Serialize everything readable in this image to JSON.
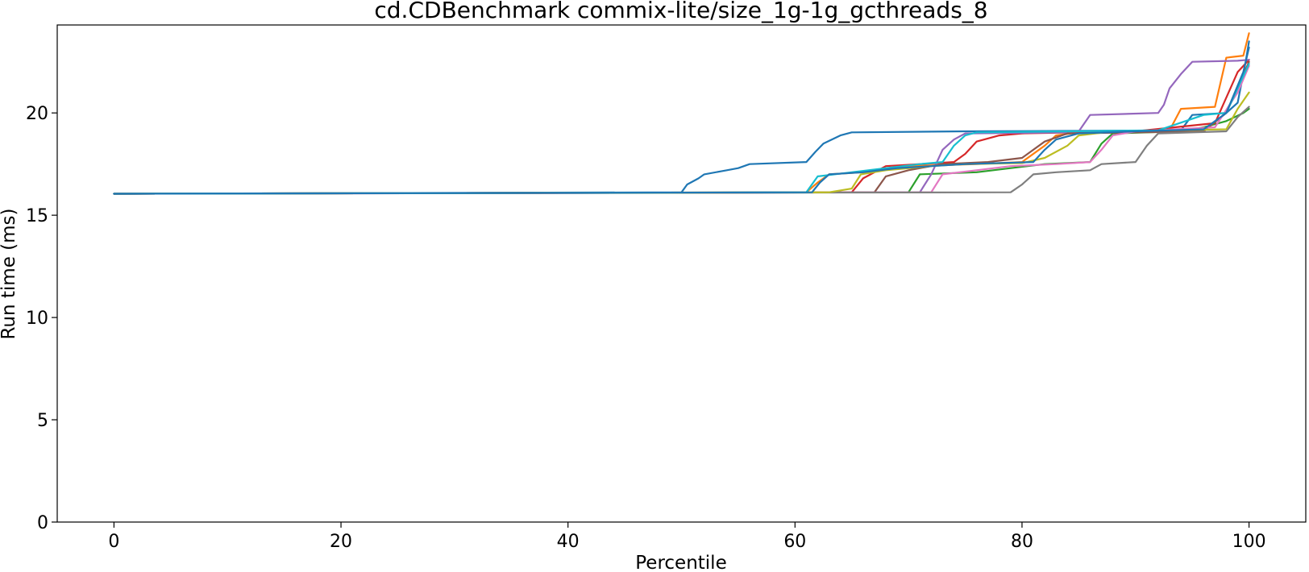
{
  "chart_data": {
    "type": "line",
    "title": "cd.CDBenchmark commix-lite/size_1g-1g_gcthreads_8",
    "xlabel": "Percentile",
    "ylabel": "Run time (ms)",
    "xlim": [
      -5,
      105
    ],
    "ylim": [
      0,
      24.3
    ],
    "xticks": [
      0,
      20,
      40,
      60,
      80,
      100
    ],
    "yticks": [
      0,
      5,
      10,
      15,
      20
    ],
    "xtick_labels": [
      "0",
      "20",
      "40",
      "60",
      "80",
      "100"
    ],
    "ytick_labels": [
      "0",
      "5",
      "10",
      "15",
      "20"
    ],
    "grid": false,
    "legend": "none",
    "series": [
      {
        "color": "#1f77b4",
        "points": [
          [
            0,
            16.05
          ],
          [
            50,
            16.12
          ],
          [
            50.5,
            16.5
          ],
          [
            51.5,
            16.8
          ],
          [
            52,
            17.0
          ],
          [
            54,
            17.2
          ],
          [
            55,
            17.3
          ],
          [
            56,
            17.5
          ],
          [
            61,
            17.6
          ],
          [
            61.8,
            18.1
          ],
          [
            62.5,
            18.5
          ],
          [
            64,
            18.9
          ],
          [
            65,
            19.05
          ],
          [
            75,
            19.1
          ],
          [
            94,
            19.15
          ],
          [
            95,
            19.9
          ],
          [
            98,
            20.0
          ],
          [
            99,
            20.5
          ],
          [
            99.7,
            22.5
          ],
          [
            100,
            23.5
          ]
        ]
      },
      {
        "color": "#ff7f0e",
        "points": [
          [
            0,
            16.05
          ],
          [
            61,
            16.12
          ],
          [
            62,
            16.6
          ],
          [
            63,
            17.0
          ],
          [
            66,
            17.1
          ],
          [
            70,
            17.4
          ],
          [
            76,
            17.5
          ],
          [
            80,
            17.6
          ],
          [
            82,
            18.4
          ],
          [
            83,
            18.9
          ],
          [
            85,
            19.05
          ],
          [
            93,
            19.15
          ],
          [
            94,
            20.2
          ],
          [
            97,
            20.3
          ],
          [
            98,
            22.7
          ],
          [
            99.5,
            22.8
          ],
          [
            100,
            23.9
          ]
        ]
      },
      {
        "color": "#2ca02c",
        "points": [
          [
            0,
            16.05
          ],
          [
            70,
            16.12
          ],
          [
            71,
            17.0
          ],
          [
            76,
            17.1
          ],
          [
            79,
            17.3
          ],
          [
            82,
            17.5
          ],
          [
            86,
            17.6
          ],
          [
            87,
            18.5
          ],
          [
            88,
            19.0
          ],
          [
            94,
            19.1
          ],
          [
            96,
            19.3
          ],
          [
            98,
            19.6
          ],
          [
            99.5,
            20.0
          ],
          [
            100,
            20.2
          ]
        ]
      },
      {
        "color": "#d62728",
        "points": [
          [
            0,
            16.05
          ],
          [
            65,
            16.12
          ],
          [
            66,
            16.8
          ],
          [
            67,
            17.1
          ],
          [
            68,
            17.4
          ],
          [
            71,
            17.5
          ],
          [
            74,
            17.6
          ],
          [
            75,
            18.0
          ],
          [
            76,
            18.6
          ],
          [
            78,
            18.9
          ],
          [
            80,
            19.0
          ],
          [
            90,
            19.1
          ],
          [
            97,
            19.5
          ],
          [
            99,
            22.0
          ],
          [
            100,
            22.6
          ]
        ]
      },
      {
        "color": "#9467bd",
        "points": [
          [
            0,
            16.05
          ],
          [
            71,
            16.12
          ],
          [
            72,
            17.0
          ],
          [
            73,
            18.2
          ],
          [
            74,
            18.7
          ],
          [
            75,
            19.0
          ],
          [
            84,
            19.05
          ],
          [
            85,
            19.1
          ],
          [
            86,
            19.9
          ],
          [
            92,
            20.0
          ],
          [
            92.5,
            20.4
          ],
          [
            93,
            21.2
          ],
          [
            94,
            21.9
          ],
          [
            95,
            22.5
          ],
          [
            99,
            22.55
          ],
          [
            100,
            22.6
          ]
        ]
      },
      {
        "color": "#8c564b",
        "points": [
          [
            0,
            16.05
          ],
          [
            67,
            16.12
          ],
          [
            68,
            16.9
          ],
          [
            70,
            17.2
          ],
          [
            73,
            17.5
          ],
          [
            77,
            17.6
          ],
          [
            80,
            17.8
          ],
          [
            82,
            18.6
          ],
          [
            84,
            19.0
          ],
          [
            96,
            19.1
          ],
          [
            98,
            20.0
          ],
          [
            100,
            22.5
          ]
        ]
      },
      {
        "color": "#e377c2",
        "points": [
          [
            0,
            16.05
          ],
          [
            72,
            16.12
          ],
          [
            73,
            17.0
          ],
          [
            76,
            17.2
          ],
          [
            79,
            17.4
          ],
          [
            83,
            17.5
          ],
          [
            86,
            17.6
          ],
          [
            87,
            18.2
          ],
          [
            88,
            18.9
          ],
          [
            90,
            19.1
          ],
          [
            97,
            19.3
          ],
          [
            99,
            21.0
          ],
          [
            100,
            22.3
          ]
        ]
      },
      {
        "color": "#7f7f7f",
        "points": [
          [
            0,
            16.05
          ],
          [
            79,
            16.12
          ],
          [
            80,
            16.5
          ],
          [
            81,
            17.0
          ],
          [
            83,
            17.1
          ],
          [
            86,
            17.2
          ],
          [
            87,
            17.5
          ],
          [
            90,
            17.6
          ],
          [
            91,
            18.4
          ],
          [
            92,
            19.0
          ],
          [
            98,
            19.1
          ],
          [
            99,
            19.8
          ],
          [
            100,
            20.3
          ]
        ]
      },
      {
        "color": "#bcbd22",
        "points": [
          [
            0,
            16.05
          ],
          [
            63,
            16.12
          ],
          [
            65,
            16.3
          ],
          [
            65.8,
            17.0
          ],
          [
            68,
            17.2
          ],
          [
            72,
            17.4
          ],
          [
            75,
            17.5
          ],
          [
            80,
            17.55
          ],
          [
            82,
            17.8
          ],
          [
            84,
            18.4
          ],
          [
            85,
            18.9
          ],
          [
            88,
            19.1
          ],
          [
            98,
            19.2
          ],
          [
            99,
            20.2
          ],
          [
            100,
            21.0
          ]
        ]
      },
      {
        "color": "#17becf",
        "points": [
          [
            0,
            16.05
          ],
          [
            61,
            16.12
          ],
          [
            62,
            16.9
          ],
          [
            65,
            17.1
          ],
          [
            68,
            17.3
          ],
          [
            71,
            17.5
          ],
          [
            73,
            17.6
          ],
          [
            74,
            18.4
          ],
          [
            75,
            18.9
          ],
          [
            76,
            19.05
          ],
          [
            92,
            19.15
          ],
          [
            96,
            19.9
          ],
          [
            98,
            20.0
          ],
          [
            100,
            22.4
          ]
        ]
      },
      {
        "color": "#1f77b4",
        "points": [
          [
            0,
            16.05
          ],
          [
            61.5,
            16.12
          ],
          [
            62.2,
            16.6
          ],
          [
            63,
            17.0
          ],
          [
            66,
            17.1
          ],
          [
            69,
            17.3
          ],
          [
            72,
            17.4
          ],
          [
            75,
            17.5
          ],
          [
            81,
            17.6
          ],
          [
            82,
            18.2
          ],
          [
            83,
            18.7
          ],
          [
            85,
            19.0
          ],
          [
            90,
            19.1
          ],
          [
            96,
            19.2
          ],
          [
            98,
            20.0
          ],
          [
            99.5,
            22.0
          ],
          [
            100,
            23.2
          ]
        ]
      }
    ]
  }
}
